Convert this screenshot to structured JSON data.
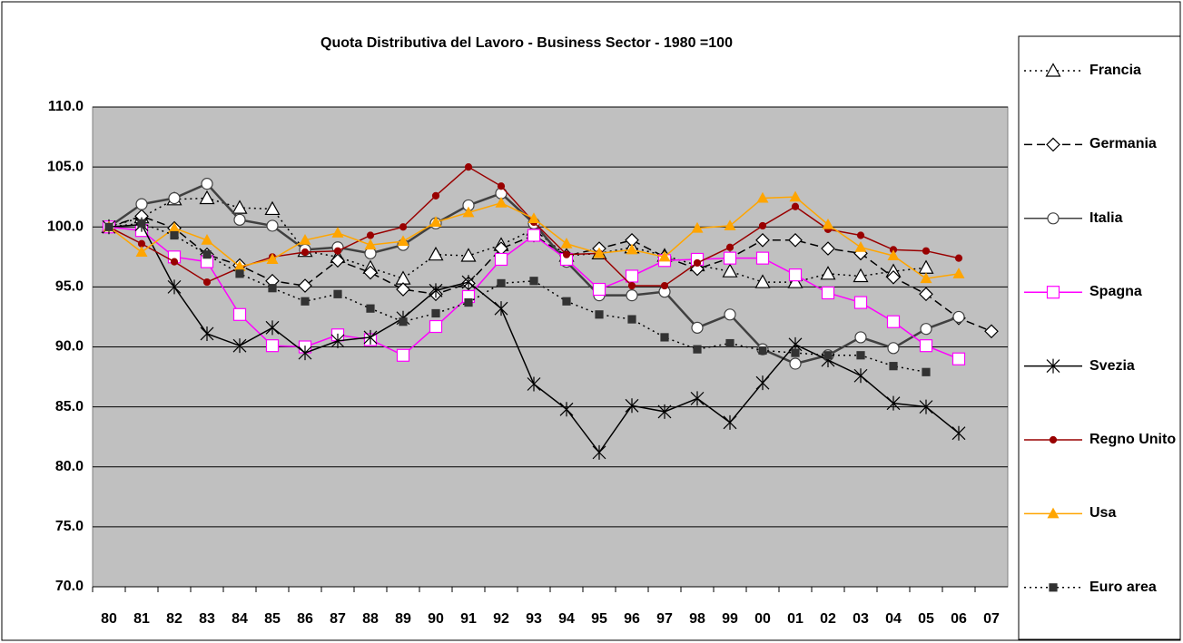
{
  "chart_data": {
    "type": "line",
    "title": "Quota Distributiva del Lavoro - Business Sector - 1980 =100",
    "categories": [
      "80",
      "81",
      "82",
      "83",
      "84",
      "85",
      "86",
      "87",
      "88",
      "89",
      "90",
      "91",
      "92",
      "93",
      "94",
      "95",
      "96",
      "97",
      "98",
      "99",
      "00",
      "01",
      "02",
      "03",
      "04",
      "05",
      "06",
      "07"
    ],
    "ylim": [
      70,
      110
    ],
    "yticks": [
      {
        "value": 70,
        "label": "70.0"
      },
      {
        "value": 75,
        "label": "75.0"
      },
      {
        "value": 80,
        "label": "80.0"
      },
      {
        "value": 85,
        "label": "85.0"
      },
      {
        "value": 90,
        "label": "90.0"
      },
      {
        "value": 95,
        "label": "95.0"
      },
      {
        "value": 100,
        "label": "100.0"
      },
      {
        "value": 105,
        "label": "105.0"
      },
      {
        "value": 110,
        "label": "110.0"
      }
    ],
    "grid": true,
    "legend": "right",
    "plot_background": "#c0c0c0",
    "series": [
      {
        "name": "Francia",
        "color": "#000000",
        "line_style": "dotted",
        "marker": "triangle",
        "marker_filled": false,
        "values": [
          100,
          100.8,
          102.3,
          102.4,
          101.6,
          101.5,
          98.0,
          97.5,
          96.6,
          95.7,
          97.7,
          97.6,
          98.5,
          99.8,
          97.6,
          97.8,
          98.3,
          97.6,
          96.8,
          96.3,
          95.4,
          95.4,
          96.1,
          95.9,
          96.3,
          96.6,
          null,
          null
        ]
      },
      {
        "name": "Germania",
        "color": "#000000",
        "line_style": "dashed",
        "marker": "diamond",
        "marker_filled": false,
        "values": [
          100,
          100.9,
          99.9,
          97.7,
          96.8,
          95.5,
          95.1,
          97.2,
          96.2,
          94.8,
          94.4,
          95.3,
          98.2,
          99.3,
          97.6,
          98.2,
          98.9,
          97.5,
          96.5,
          97.4,
          98.9,
          98.9,
          98.2,
          97.8,
          95.8,
          94.4,
          92.4,
          91.3
        ]
      },
      {
        "name": "Italia",
        "color": "#404040",
        "line_style": "solid",
        "marker": "circle",
        "marker_filled": false,
        "values": [
          100,
          101.9,
          102.4,
          103.6,
          100.6,
          100.1,
          98.1,
          98.3,
          97.8,
          98.5,
          100.3,
          101.8,
          102.8,
          100.3,
          97.1,
          94.3,
          94.3,
          94.6,
          91.6,
          92.7,
          89.8,
          88.6,
          89.3,
          90.8,
          89.9,
          91.5,
          92.5,
          null
        ]
      },
      {
        "name": "Spagna",
        "color": "#ff00ff",
        "line_style": "solid",
        "marker": "square",
        "marker_filled": false,
        "values": [
          100,
          99.7,
          97.5,
          97.1,
          92.7,
          90.1,
          90.0,
          91.0,
          90.6,
          89.3,
          91.7,
          94.2,
          97.3,
          99.3,
          97.3,
          94.8,
          95.9,
          97.2,
          97.3,
          97.4,
          97.4,
          96.0,
          94.5,
          93.7,
          92.1,
          90.1,
          89.0,
          null
        ]
      },
      {
        "name": "Svezia",
        "color": "#000000",
        "line_style": "solid",
        "marker": "star",
        "marker_filled": false,
        "values": [
          100,
          100.2,
          95.0,
          91.1,
          90.1,
          91.6,
          89.5,
          90.5,
          90.8,
          92.4,
          94.7,
          95.4,
          93.2,
          86.9,
          84.8,
          81.2,
          85.1,
          84.6,
          85.7,
          83.7,
          87.0,
          90.2,
          88.9,
          87.6,
          85.3,
          85.0,
          82.8,
          null
        ]
      },
      {
        "name": "Regno Unito",
        "color": "#990000",
        "line_style": "solid",
        "marker": "dot",
        "marker_filled": true,
        "values": [
          100,
          98.6,
          97.1,
          95.4,
          96.6,
          97.5,
          97.9,
          98.0,
          99.3,
          100.0,
          102.6,
          105.0,
          103.4,
          100.4,
          97.7,
          97.8,
          95.1,
          95.1,
          97.0,
          98.3,
          100.1,
          101.7,
          99.8,
          99.3,
          98.1,
          98.0,
          97.4,
          null
        ]
      },
      {
        "name": "Usa",
        "color": "#ffa500",
        "line_style": "solid",
        "marker": "triangle",
        "marker_filled": true,
        "values": [
          100,
          97.9,
          99.9,
          98.9,
          96.7,
          97.3,
          98.9,
          99.5,
          98.5,
          98.8,
          100.4,
          101.2,
          102.0,
          100.7,
          98.6,
          97.8,
          98.1,
          97.5,
          99.9,
          100.1,
          102.4,
          102.5,
          100.2,
          98.3,
          97.6,
          95.7,
          96.1,
          null
        ]
      },
      {
        "name": "Euro area",
        "color": "#000000",
        "marker_color": "#333333",
        "line_style": "dotted",
        "marker": "square",
        "marker_filled": true,
        "values": [
          100,
          100.3,
          99.3,
          97.7,
          96.1,
          94.9,
          93.8,
          94.4,
          93.2,
          92.1,
          92.8,
          93.7,
          95.3,
          95.5,
          93.8,
          92.7,
          92.3,
          90.8,
          89.8,
          90.3,
          89.7,
          89.5,
          89.3,
          89.3,
          88.4,
          87.9,
          null,
          null
        ]
      }
    ]
  }
}
